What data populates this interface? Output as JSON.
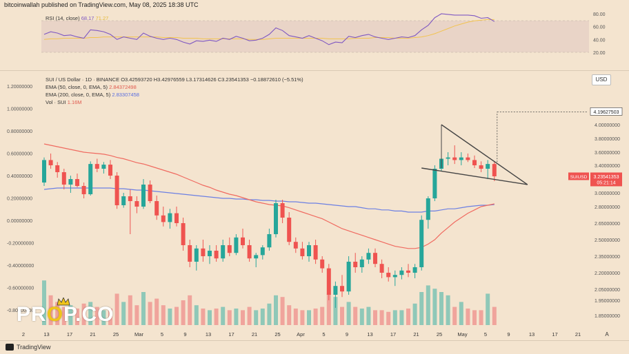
{
  "header": {
    "publisher_line": "bitcoinwallah published on TradingView.com, May 08, 2025 18:38 UTC"
  },
  "rsi_panel": {
    "legend_name": "RSI (14, close)",
    "legend_value_rsi": "68.17",
    "legend_value_ma": "71.27",
    "ticks": [
      "80.00",
      "60.00",
      "40.00",
      "20.00"
    ]
  },
  "main_legend": {
    "symbol_line": "SUI / US Dollar · 1D · BINANCE",
    "ohlc": "O3.42593720 H3.42976559 L3.17314626 C3.23541353 −0.18872610 (−5.51%)",
    "ema50_name": "EMA (50, close, 0, EMA, 5)",
    "ema50_value": "2.84372498",
    "ema200_name": "EMA (200, close, 0, EMA, 5)",
    "ema200_value": "2.83307458",
    "vol_name": "Vol · SUI",
    "vol_value": "1.16M"
  },
  "price_scale": {
    "currency_button": "USD",
    "ticks": [
      "4.00000000",
      "3.80000000",
      "3.60000000",
      "3.40000000",
      "3.20000000",
      "3.00000000",
      "2.80000000",
      "2.65000000",
      "2.50000000",
      "2.35000000",
      "2.20000000",
      "2.05000000",
      "1.95000000",
      "1.85000000"
    ],
    "target_label": "4.19627503",
    "current_symbol_label": "SUIUSD",
    "current_price_label": "3.23541353",
    "countdown_label": "05:21:14"
  },
  "left_scale": {
    "ticks": [
      "1.20000000",
      "1.00000000",
      "0.80000000",
      "0.60000000",
      "0.40000000",
      "0.20000000",
      "0.00000000",
      "-0.20000000",
      "-0.40000000",
      "-0.60000000",
      "-0.80000000",
      "-1.00000000",
      "-1.20000000"
    ]
  },
  "time_axis": {
    "labels": [
      "2",
      "13",
      "17",
      "21",
      "25",
      "Mar",
      "5",
      "9",
      "13",
      "17",
      "21",
      "25",
      "Apr",
      "5",
      "9",
      "13",
      "17",
      "21",
      "25",
      "May",
      "5",
      "9",
      "13",
      "17",
      "21"
    ],
    "corner_label": "A"
  },
  "footer": {
    "brand": "TradingView"
  },
  "watermark": {
    "left": "PR",
    "middle": "O",
    "right": "P.CO"
  },
  "colors": {
    "bull": "#26a69a",
    "bear": "#ef5350",
    "ema50": "#f06a60",
    "ema200": "#6b7fe3",
    "rsi": "#7e57c2",
    "rsi_ma": "#f2c34e",
    "background": "#f4e4cf",
    "pattern": "#444444"
  },
  "chart_data": {
    "type": "candlestick",
    "symbol": "SUI / US Dollar",
    "interval": "1D",
    "exchange": "BINANCE",
    "ylim": [
      1.8,
      4.2
    ],
    "candles": [
      [
        3.15,
        3.52,
        3.1,
        3.48
      ],
      [
        3.48,
        3.58,
        3.35,
        3.4
      ],
      [
        3.4,
        3.45,
        3.22,
        3.3
      ],
      [
        3.3,
        3.35,
        3.05,
        3.12
      ],
      [
        3.12,
        3.25,
        3.0,
        3.2
      ],
      [
        3.2,
        3.28,
        3.08,
        3.1
      ],
      [
        3.1,
        3.15,
        2.92,
        2.98
      ],
      [
        2.98,
        3.46,
        2.96,
        3.42
      ],
      [
        3.42,
        3.5,
        3.3,
        3.35
      ],
      [
        3.35,
        3.45,
        3.28,
        3.41
      ],
      [
        3.41,
        3.48,
        3.2,
        3.25
      ],
      [
        3.25,
        3.3,
        2.78,
        2.82
      ],
      [
        2.82,
        3.0,
        2.79,
        2.95
      ],
      [
        2.95,
        3.05,
        2.55,
        2.88
      ],
      [
        2.88,
        2.95,
        2.74,
        2.8
      ],
      [
        2.8,
        3.2,
        2.78,
        3.12
      ],
      [
        3.12,
        3.18,
        2.85,
        2.88
      ],
      [
        2.88,
        2.96,
        2.68,
        2.72
      ],
      [
        2.72,
        2.8,
        2.62,
        2.66
      ],
      [
        2.66,
        2.78,
        2.6,
        2.74
      ],
      [
        2.74,
        2.8,
        2.62,
        2.65
      ],
      [
        2.65,
        2.7,
        2.4,
        2.45
      ],
      [
        2.45,
        2.5,
        2.25,
        2.3
      ],
      [
        2.3,
        2.45,
        2.22,
        2.42
      ],
      [
        2.42,
        2.5,
        2.3,
        2.35
      ],
      [
        2.35,
        2.45,
        2.28,
        2.4
      ],
      [
        2.4,
        2.45,
        2.3,
        2.33
      ],
      [
        2.33,
        2.5,
        2.3,
        2.45
      ],
      [
        2.45,
        2.52,
        2.35,
        2.38
      ],
      [
        2.38,
        2.55,
        2.36,
        2.52
      ],
      [
        2.52,
        2.6,
        2.42,
        2.45
      ],
      [
        2.45,
        2.5,
        2.3,
        2.33
      ],
      [
        2.33,
        2.38,
        2.25,
        2.36
      ],
      [
        2.36,
        2.45,
        2.32,
        2.43
      ],
      [
        2.43,
        2.6,
        2.4,
        2.55
      ],
      [
        2.55,
        2.9,
        2.52,
        2.85
      ],
      [
        2.85,
        2.9,
        2.65,
        2.7
      ],
      [
        2.7,
        2.75,
        2.45,
        2.48
      ],
      [
        2.48,
        2.52,
        2.38,
        2.42
      ],
      [
        2.42,
        2.48,
        2.32,
        2.35
      ],
      [
        2.35,
        2.48,
        2.3,
        2.45
      ],
      [
        2.45,
        2.5,
        2.28,
        2.32
      ],
      [
        2.32,
        2.35,
        2.2,
        2.24
      ],
      [
        2.24,
        2.28,
        1.95,
        2.0
      ],
      [
        2.0,
        2.12,
        1.9,
        2.08
      ],
      [
        2.08,
        2.18,
        1.98,
        2.03
      ],
      [
        2.03,
        2.35,
        2.0,
        2.3
      ],
      [
        2.3,
        2.38,
        2.2,
        2.25
      ],
      [
        2.25,
        2.35,
        2.2,
        2.32
      ],
      [
        2.32,
        2.42,
        2.28,
        2.38
      ],
      [
        2.38,
        2.42,
        2.25,
        2.28
      ],
      [
        2.28,
        2.32,
        2.15,
        2.2
      ],
      [
        2.2,
        2.25,
        2.12,
        2.16
      ],
      [
        2.16,
        2.22,
        2.08,
        2.18
      ],
      [
        2.18,
        2.25,
        2.14,
        2.22
      ],
      [
        2.22,
        2.28,
        2.16,
        2.2
      ],
      [
        2.2,
        2.28,
        2.15,
        2.25
      ],
      [
        2.25,
        2.72,
        2.22,
        2.68
      ],
      [
        2.68,
        2.95,
        2.6,
        2.92
      ],
      [
        2.92,
        3.4,
        2.88,
        3.35
      ],
      [
        3.35,
        4.0,
        3.32,
        3.5
      ],
      [
        3.5,
        3.6,
        3.4,
        3.52
      ],
      [
        3.52,
        3.7,
        3.42,
        3.48
      ],
      [
        3.48,
        3.6,
        3.4,
        3.52
      ],
      [
        3.52,
        3.58,
        3.45,
        3.48
      ],
      [
        3.48,
        3.55,
        3.36,
        3.4
      ],
      [
        3.4,
        3.46,
        3.3,
        3.35
      ],
      [
        3.35,
        3.48,
        3.2,
        3.42
      ],
      [
        3.42,
        3.46,
        3.17,
        3.24
      ]
    ],
    "volume": [
      1.35,
      0.9,
      0.7,
      0.55,
      0.6,
      0.5,
      0.65,
      0.7,
      0.55,
      0.45,
      0.5,
      0.95,
      0.7,
      0.9,
      0.6,
      1.0,
      0.7,
      0.8,
      0.6,
      0.5,
      0.55,
      0.75,
      0.9,
      0.6,
      0.5,
      0.45,
      0.5,
      0.55,
      0.45,
      0.5,
      0.45,
      0.55,
      0.45,
      0.5,
      0.65,
      0.9,
      0.85,
      0.6,
      0.5,
      0.45,
      0.45,
      0.5,
      0.55,
      0.95,
      0.85,
      0.55,
      0.7,
      0.55,
      0.5,
      0.55,
      0.45,
      0.45,
      0.4,
      0.45,
      0.45,
      0.5,
      0.65,
      1.0,
      1.2,
      1.1,
      1.0,
      0.9,
      0.55,
      0.7,
      0.5,
      0.45,
      0.45,
      0.95,
      0.55
    ],
    "ema50": [
      3.72,
      3.7,
      3.68,
      3.66,
      3.64,
      3.62,
      3.6,
      3.59,
      3.58,
      3.57,
      3.55,
      3.52,
      3.5,
      3.47,
      3.44,
      3.42,
      3.39,
      3.36,
      3.33,
      3.3,
      3.27,
      3.23,
      3.19,
      3.15,
      3.11,
      3.08,
      3.04,
      3.01,
      2.98,
      2.96,
      2.93,
      2.9,
      2.87,
      2.85,
      2.83,
      2.82,
      2.81,
      2.79,
      2.77,
      2.75,
      2.73,
      2.71,
      2.69,
      2.66,
      2.63,
      2.6,
      2.58,
      2.56,
      2.54,
      2.52,
      2.5,
      2.48,
      2.46,
      2.44,
      2.43,
      2.42,
      2.42,
      2.43,
      2.46,
      2.5,
      2.56,
      2.61,
      2.66,
      2.7,
      2.74,
      2.77,
      2.8,
      2.82,
      2.84
    ],
    "ema200": [
      3.05,
      3.06,
      3.07,
      3.07,
      3.07,
      3.07,
      3.07,
      3.07,
      3.07,
      3.07,
      3.07,
      3.06,
      3.06,
      3.05,
      3.04,
      3.04,
      3.03,
      3.02,
      3.01,
      3.0,
      2.99,
      2.98,
      2.97,
      2.96,
      2.95,
      2.94,
      2.93,
      2.92,
      2.92,
      2.91,
      2.91,
      2.9,
      2.9,
      2.89,
      2.89,
      2.88,
      2.88,
      2.87,
      2.87,
      2.86,
      2.85,
      2.85,
      2.84,
      2.83,
      2.82,
      2.81,
      2.8,
      2.8,
      2.79,
      2.78,
      2.78,
      2.77,
      2.77,
      2.76,
      2.76,
      2.75,
      2.75,
      2.75,
      2.76,
      2.76,
      2.77,
      2.78,
      2.78,
      2.79,
      2.8,
      2.81,
      2.82,
      2.82,
      2.83
    ],
    "rsi": [
      48,
      52,
      50,
      46,
      47,
      44,
      42,
      55,
      54,
      52,
      48,
      40,
      44,
      42,
      40,
      50,
      45,
      42,
      40,
      42,
      40,
      36,
      33,
      38,
      37,
      39,
      37,
      42,
      40,
      45,
      42,
      38,
      39,
      42,
      48,
      58,
      54,
      46,
      44,
      42,
      46,
      42,
      38,
      32,
      36,
      35,
      45,
      43,
      46,
      48,
      44,
      42,
      40,
      42,
      44,
      43,
      46,
      55,
      62,
      74,
      80,
      79,
      78,
      78,
      78,
      77,
      73,
      74,
      68
    ],
    "rsi_ma": [
      40,
      41,
      41,
      42,
      42,
      42,
      42,
      43,
      43,
      44,
      44,
      44,
      44,
      44,
      44,
      44,
      44,
      44,
      43,
      43,
      43,
      42,
      42,
      42,
      41,
      41,
      41,
      41,
      41,
      41,
      41,
      40,
      40,
      40,
      41,
      42,
      42,
      42,
      42,
      42,
      42,
      42,
      42,
      41,
      41,
      41,
      41,
      42,
      42,
      42,
      43,
      43,
      43,
      42,
      42,
      42,
      43,
      44,
      46,
      49,
      53,
      57,
      61,
      64,
      67,
      69,
      70,
      71,
      71
    ],
    "rsi_ticks": [
      80,
      60,
      40,
      20
    ],
    "pattern": {
      "name": "falling wedge",
      "upper_line": [
        [
          60,
          4.0
        ],
        [
          73,
          3.12
        ]
      ],
      "lower_line": [
        [
          57,
          3.36
        ],
        [
          73,
          3.12
        ]
      ],
      "target_price": 4.19627503
    }
  }
}
